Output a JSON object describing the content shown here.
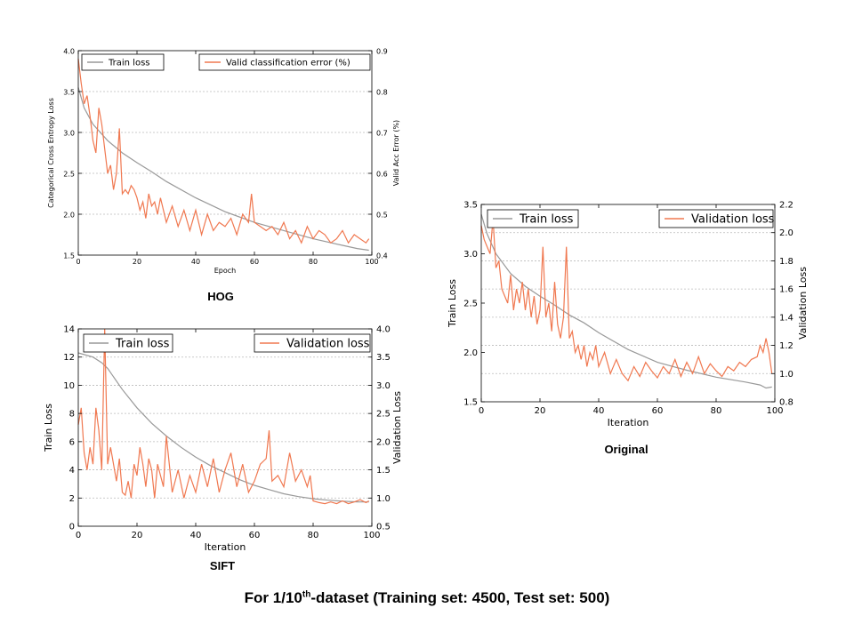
{
  "footer": {
    "prefix": "For 1/10",
    "sup": "th",
    "suffix": "-dataset (Training set: 4500, Test set: 500)"
  },
  "captions": {
    "hog": "HOG",
    "sift": "SIFT",
    "original": "Original"
  },
  "colors": {
    "train": "#999999",
    "valid": "#f07850",
    "grid": "#bbbbbb"
  },
  "chart_data": [
    {
      "id": "hog",
      "type": "line",
      "title": "HOG",
      "xlabel": "Epoch",
      "ylabel": "Categorical Cross Entropy Loss",
      "y2label": "Valid Acc Error (%)",
      "xlim": [
        0,
        100
      ],
      "ylim": [
        1.5,
        4.0
      ],
      "y2lim": [
        0.4,
        0.9
      ],
      "xticks": [
        0,
        20,
        40,
        60,
        80,
        100
      ],
      "yticks": [
        1.5,
        2.0,
        2.5,
        3.0,
        3.5,
        4.0
      ],
      "y2ticks": [
        0.4,
        0.5,
        0.6,
        0.7,
        0.8,
        0.9
      ],
      "xtick_labels": [
        "0",
        "20",
        "40",
        "60",
        "80",
        "100"
      ],
      "ytick_labels": [
        "1.5",
        "2.0",
        "2.5",
        "3.0",
        "3.5",
        "4.0"
      ],
      "y2tick_labels": [
        "0.4",
        "0.5",
        "0.6",
        "0.7",
        "0.8",
        "0.9"
      ],
      "grid": "y2",
      "legend": {
        "train": "Train loss",
        "valid": "Valid classification error (%)"
      },
      "series": [
        {
          "name": "Train loss",
          "axis": "left",
          "x": [
            0,
            2,
            5,
            10,
            15,
            20,
            25,
            30,
            40,
            50,
            60,
            70,
            80,
            90,
            95,
            99
          ],
          "values": [
            3.55,
            3.3,
            3.1,
            2.9,
            2.75,
            2.63,
            2.52,
            2.4,
            2.2,
            2.03,
            1.9,
            1.8,
            1.7,
            1.62,
            1.58,
            1.56
          ]
        },
        {
          "name": "Valid classification error (%)",
          "axis": "right",
          "x": [
            0,
            1,
            2,
            3,
            4,
            5,
            6,
            7,
            8,
            9,
            10,
            11,
            12,
            13,
            14,
            15,
            16,
            17,
            18,
            19,
            20,
            21,
            22,
            23,
            24,
            25,
            26,
            27,
            28,
            29,
            30,
            32,
            34,
            36,
            38,
            40,
            42,
            44,
            46,
            48,
            50,
            52,
            54,
            56,
            58,
            59,
            60,
            62,
            64,
            66,
            68,
            70,
            72,
            74,
            76,
            78,
            80,
            82,
            84,
            86,
            88,
            90,
            92,
            94,
            96,
            98,
            99
          ],
          "values": [
            0.88,
            0.82,
            0.77,
            0.79,
            0.74,
            0.68,
            0.65,
            0.76,
            0.72,
            0.66,
            0.6,
            0.62,
            0.56,
            0.6,
            0.71,
            0.55,
            0.56,
            0.55,
            0.57,
            0.56,
            0.54,
            0.51,
            0.53,
            0.49,
            0.55,
            0.52,
            0.53,
            0.5,
            0.54,
            0.51,
            0.48,
            0.52,
            0.47,
            0.51,
            0.46,
            0.51,
            0.45,
            0.5,
            0.46,
            0.48,
            0.47,
            0.49,
            0.45,
            0.5,
            0.48,
            0.55,
            0.48,
            0.47,
            0.46,
            0.47,
            0.45,
            0.48,
            0.44,
            0.46,
            0.43,
            0.47,
            0.44,
            0.46,
            0.45,
            0.43,
            0.44,
            0.46,
            0.43,
            0.45,
            0.44,
            0.43,
            0.44
          ]
        }
      ]
    },
    {
      "id": "sift",
      "type": "line",
      "title": "SIFT",
      "xlabel": "Iteration",
      "ylabel": "Train Loss",
      "y2label": "Validation Loss",
      "xlim": [
        0,
        100
      ],
      "ylim": [
        0,
        14
      ],
      "y2lim": [
        0.5,
        4.0
      ],
      "xticks": [
        0,
        20,
        40,
        60,
        80,
        100
      ],
      "yticks": [
        0,
        2,
        4,
        6,
        8,
        10,
        12,
        14
      ],
      "y2ticks": [
        0.5,
        1.0,
        1.5,
        2.0,
        2.5,
        3.0,
        3.5,
        4.0
      ],
      "xtick_labels": [
        "0",
        "20",
        "40",
        "60",
        "80",
        "100"
      ],
      "ytick_labels": [
        "0",
        "2",
        "4",
        "6",
        "8",
        "10",
        "12",
        "14"
      ],
      "y2tick_labels": [
        "0.5",
        "1.0",
        "1.5",
        "2.0",
        "2.5",
        "3.0",
        "3.5",
        "4.0"
      ],
      "grid": "y2",
      "legend": {
        "train": "Train loss",
        "valid": "Validation loss"
      },
      "series": [
        {
          "name": "Train loss",
          "axis": "left",
          "x": [
            0,
            5,
            8,
            10,
            15,
            20,
            25,
            30,
            35,
            40,
            45,
            50,
            55,
            60,
            65,
            70,
            75,
            80,
            85,
            90,
            95,
            99
          ],
          "values": [
            12.3,
            12.0,
            11.6,
            11.2,
            9.7,
            8.4,
            7.3,
            6.4,
            5.6,
            4.9,
            4.3,
            3.8,
            3.3,
            2.9,
            2.6,
            2.3,
            2.1,
            1.95,
            1.85,
            1.78,
            1.73,
            1.72
          ]
        },
        {
          "name": "Validation loss",
          "axis": "right",
          "x": [
            0,
            1,
            2,
            3,
            4,
            5,
            6,
            7,
            8,
            9,
            10,
            11,
            12,
            13,
            14,
            15,
            16,
            17,
            18,
            19,
            20,
            21,
            22,
            23,
            24,
            25,
            26,
            27,
            28,
            29,
            30,
            32,
            34,
            36,
            38,
            40,
            42,
            44,
            46,
            48,
            50,
            52,
            54,
            56,
            58,
            60,
            62,
            64,
            65,
            66,
            68,
            70,
            72,
            74,
            76,
            78,
            79,
            80,
            82,
            84,
            86,
            88,
            90,
            92,
            94,
            96,
            98,
            99
          ],
          "values": [
            2.3,
            2.6,
            1.8,
            1.5,
            1.9,
            1.6,
            2.6,
            2.2,
            1.5,
            4.0,
            1.6,
            1.9,
            1.6,
            1.3,
            1.7,
            1.1,
            1.05,
            1.3,
            1.0,
            1.6,
            1.4,
            1.9,
            1.6,
            1.2,
            1.7,
            1.5,
            1.0,
            1.6,
            1.4,
            1.2,
            2.1,
            1.1,
            1.5,
            1.0,
            1.4,
            1.1,
            1.6,
            1.2,
            1.7,
            1.1,
            1.5,
            1.8,
            1.2,
            1.6,
            1.1,
            1.3,
            1.6,
            1.7,
            2.2,
            1.3,
            1.4,
            1.2,
            1.8,
            1.3,
            1.5,
            1.2,
            1.4,
            0.95,
            0.92,
            0.9,
            0.93,
            0.9,
            0.95,
            0.9,
            0.93,
            0.97,
            0.92,
            0.95
          ]
        }
      ]
    },
    {
      "id": "original",
      "type": "line",
      "title": "Original",
      "xlabel": "Iteration",
      "ylabel": "Train Loss",
      "y2label": "Validation Loss",
      "xlim": [
        0,
        100
      ],
      "ylim": [
        1.5,
        3.5
      ],
      "y2lim": [
        0.8,
        2.2
      ],
      "xticks": [
        0,
        20,
        40,
        60,
        80,
        100
      ],
      "yticks": [
        1.5,
        2.0,
        2.5,
        3.0,
        3.5
      ],
      "y2ticks": [
        0.8,
        1.0,
        1.2,
        1.4,
        1.6,
        1.8,
        2.0,
        2.2
      ],
      "xtick_labels": [
        "0",
        "20",
        "40",
        "60",
        "80",
        "100"
      ],
      "ytick_labels": [
        "1.5",
        "2.0",
        "2.5",
        "3.0",
        "3.5"
      ],
      "y2tick_labels": [
        "0.8",
        "1.0",
        "1.2",
        "1.4",
        "1.6",
        "1.8",
        "2.0",
        "2.2"
      ],
      "grid": "y2",
      "legend": {
        "train": "Train loss",
        "valid": "Validation loss"
      },
      "series": [
        {
          "name": "Train loss",
          "axis": "left",
          "x": [
            0,
            2,
            5,
            10,
            15,
            20,
            25,
            30,
            35,
            40,
            50,
            60,
            70,
            80,
            90,
            95,
            97,
            99
          ],
          "values": [
            3.4,
            3.2,
            3.0,
            2.8,
            2.67,
            2.57,
            2.48,
            2.38,
            2.3,
            2.2,
            2.03,
            1.9,
            1.82,
            1.75,
            1.7,
            1.67,
            1.64,
            1.65
          ]
        },
        {
          "name": "Validation loss",
          "axis": "right",
          "x": [
            0,
            1,
            2,
            3,
            4,
            5,
            6,
            7,
            8,
            9,
            10,
            11,
            12,
            13,
            14,
            15,
            16,
            17,
            18,
            19,
            20,
            21,
            22,
            23,
            24,
            25,
            26,
            27,
            28,
            29,
            30,
            31,
            32,
            33,
            34,
            35,
            36,
            37,
            38,
            39,
            40,
            42,
            44,
            46,
            48,
            50,
            52,
            54,
            56,
            58,
            60,
            62,
            64,
            66,
            68,
            70,
            72,
            74,
            76,
            78,
            80,
            82,
            84,
            86,
            88,
            90,
            92,
            94,
            95,
            96,
            97,
            98,
            99
          ],
          "values": [
            2.05,
            1.95,
            1.9,
            1.85,
            2.1,
            1.75,
            1.8,
            1.6,
            1.55,
            1.5,
            1.7,
            1.45,
            1.6,
            1.5,
            1.65,
            1.45,
            1.6,
            1.4,
            1.55,
            1.35,
            1.45,
            1.9,
            1.4,
            1.5,
            1.3,
            1.65,
            1.35,
            1.25,
            1.4,
            1.9,
            1.25,
            1.3,
            1.15,
            1.2,
            1.1,
            1.2,
            1.05,
            1.15,
            1.1,
            1.2,
            1.05,
            1.15,
            1.0,
            1.1,
            1.0,
            0.95,
            1.05,
            0.98,
            1.08,
            1.02,
            0.97,
            1.05,
            1.0,
            1.1,
            0.98,
            1.08,
            1.0,
            1.12,
            1.0,
            1.07,
            1.02,
            0.98,
            1.05,
            1.02,
            1.08,
            1.05,
            1.1,
            1.12,
            1.2,
            1.15,
            1.25,
            1.15,
            1.0
          ]
        }
      ]
    }
  ]
}
